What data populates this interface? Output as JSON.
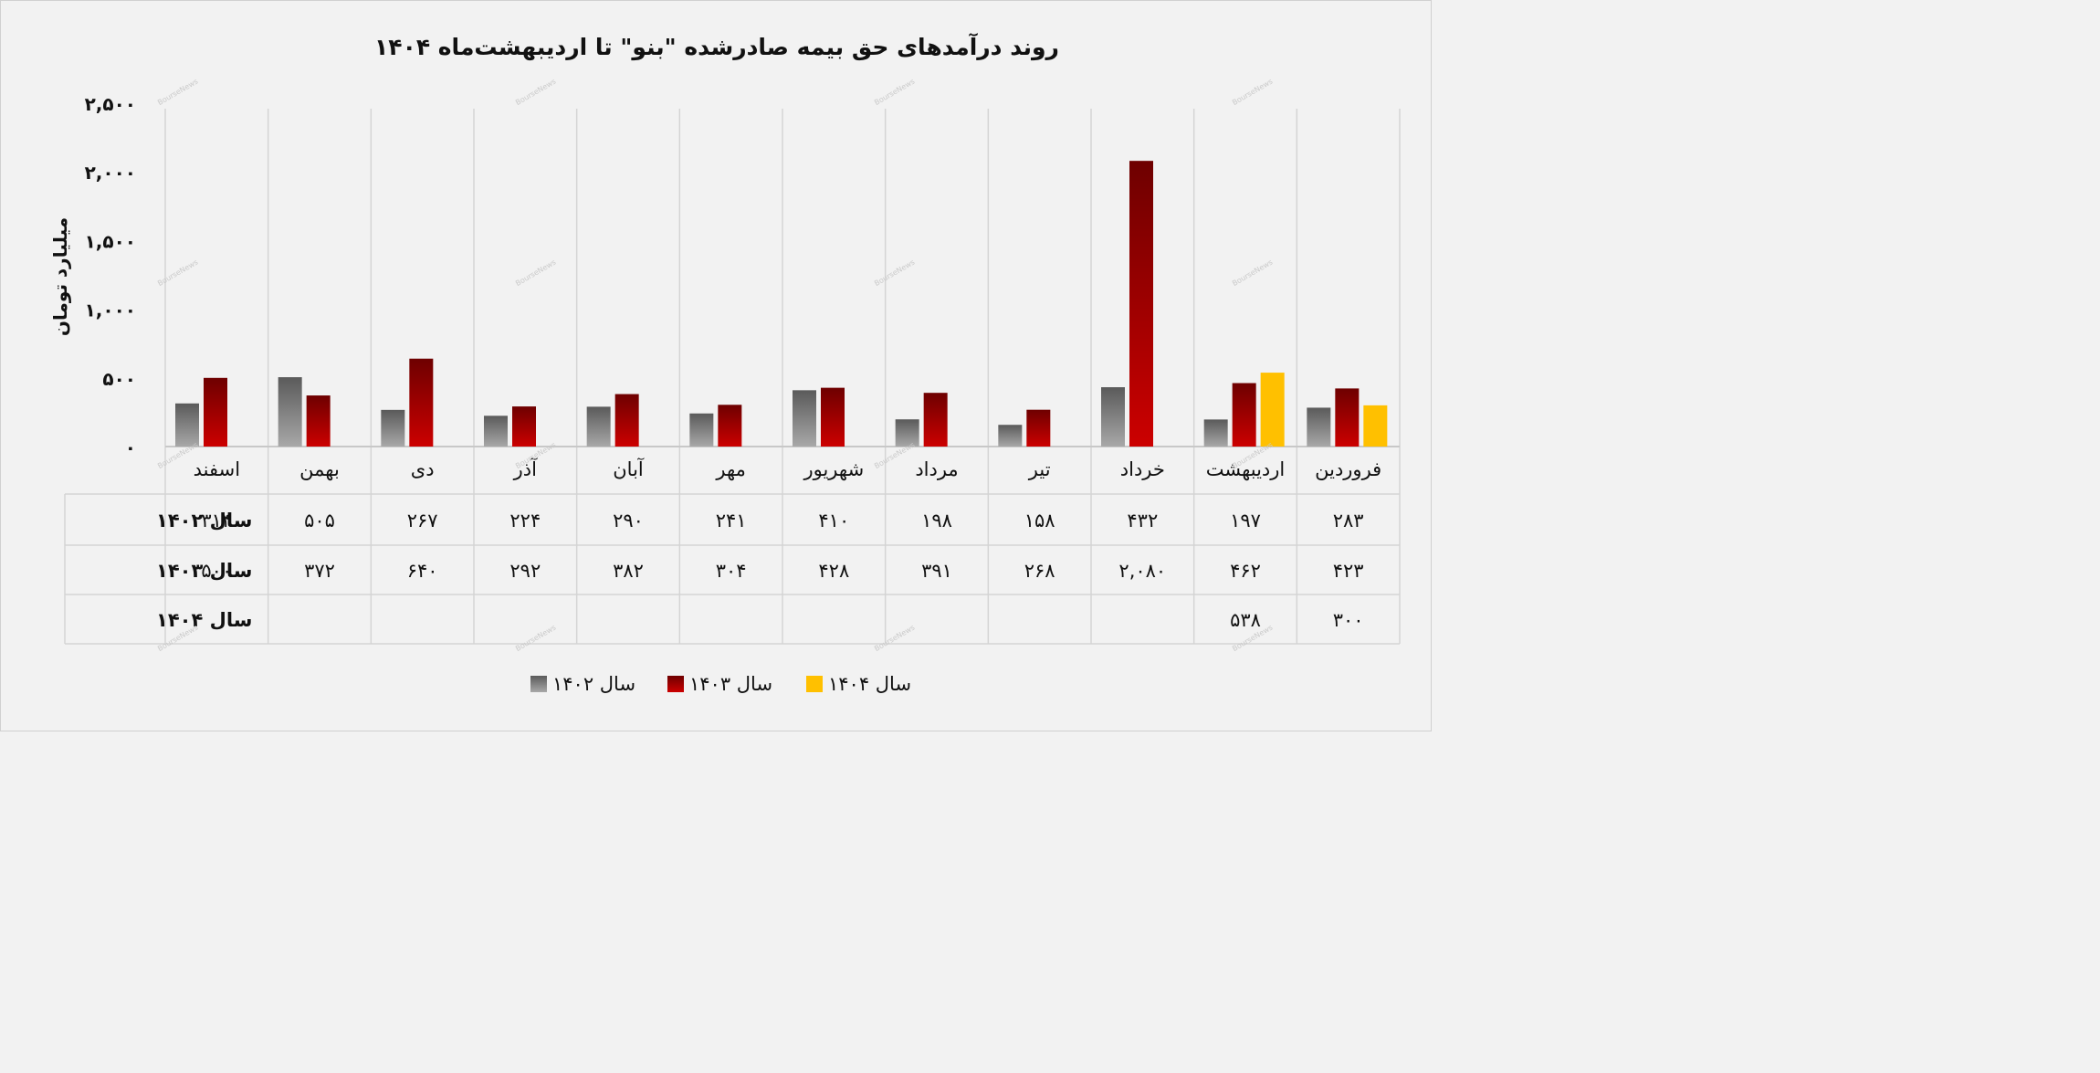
{
  "chart_data": {
    "type": "bar",
    "title": "روند درآمدهای حق بیمه صادرشده \"بنو\" تا اردیبهشت‌ماه ۱۴۰۴",
    "ylabel": "میلیارد تومان",
    "ylim": [
      0,
      2500
    ],
    "yticks": [
      0,
      500,
      1000,
      1500,
      2000,
      2500
    ],
    "ytick_labels": [
      "۰",
      "۵۰۰",
      "۱,۰۰۰",
      "۱,۵۰۰",
      "۲,۰۰۰",
      "۲,۵۰۰"
    ],
    "direction": "rtl",
    "categories": [
      "فروردین",
      "اردیبهشت",
      "خرداد",
      "تیر",
      "مرداد",
      "شهریور",
      "مهر",
      "آبان",
      "آذر",
      "دی",
      "بهمن",
      "اسفند"
    ],
    "series": [
      {
        "name": "سال ۱۴۰۲",
        "color": "#8c8c8c",
        "values": [
          283,
          197,
          432,
          158,
          198,
          410,
          241,
          290,
          224,
          267,
          505,
          314
        ],
        "labels": [
          "۲۸۳",
          "۱۹۷",
          "۴۳۲",
          "۱۵۸",
          "۱۹۸",
          "۴۱۰",
          "۲۴۱",
          "۲۹۰",
          "۲۲۴",
          "۲۶۷",
          "۵۰۵",
          "۳۱۴"
        ]
      },
      {
        "name": "سال ۱۴۰۳",
        "color": "#b30000",
        "values": [
          423,
          462,
          2080,
          268,
          391,
          428,
          304,
          382,
          292,
          640,
          372,
          500
        ],
        "labels": [
          "۴۲۳",
          "۴۶۲",
          "۲,۰۸۰",
          "۲۶۸",
          "۳۹۱",
          "۴۲۸",
          "۳۰۴",
          "۳۸۲",
          "۲۹۲",
          "۶۴۰",
          "۳۷۲",
          "۵۰۰"
        ]
      },
      {
        "name": "سال ۱۴۰۴",
        "color": "#ffc000",
        "values": [
          300,
          538,
          null,
          null,
          null,
          null,
          null,
          null,
          null,
          null,
          null,
          null
        ],
        "labels": [
          "۳۰۰",
          "۵۳۸",
          "",
          "",
          "",
          "",
          "",
          "",
          "",
          "",
          "",
          ""
        ]
      }
    ],
    "grid": "vertical",
    "data_table": true,
    "legend": "bottom-center",
    "watermark": "BourseNews"
  }
}
